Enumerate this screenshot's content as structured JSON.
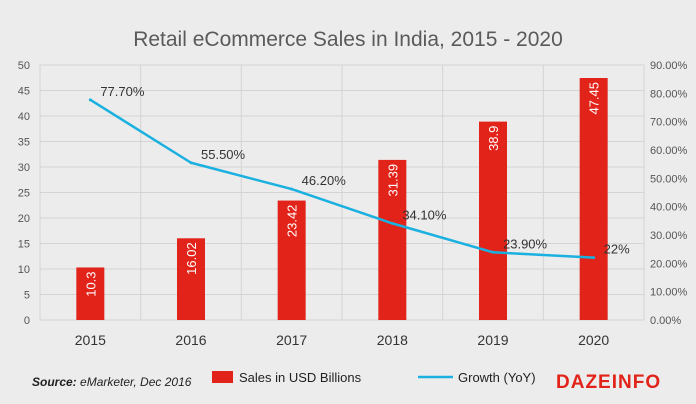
{
  "colors": {
    "bar": "#e2231a",
    "line": "#1ab0e0",
    "grid": "#d4d4d4",
    "background": "#ececec"
  },
  "source": {
    "label": "Source:",
    "text": " eMarketer, Dec 2016"
  },
  "logo": "DAZEINFO",
  "chart_data": {
    "type": "bar",
    "title": "Retail eCommerce Sales in India, 2015 - 2020",
    "categories": [
      "2015",
      "2016",
      "2017",
      "2018",
      "2019",
      "2020"
    ],
    "series": [
      {
        "name": "Sales in USD Billions",
        "type": "bar",
        "axis": "left",
        "values": [
          10.3,
          16.02,
          23.42,
          31.39,
          38.9,
          47.45
        ],
        "labels": [
          "10.3",
          "16.02",
          "23.42",
          "31.39",
          "38.9",
          "47.45"
        ]
      },
      {
        "name": "Growth (YoY)",
        "type": "line",
        "axis": "right",
        "values": [
          77.7,
          55.5,
          46.2,
          34.1,
          23.9,
          22
        ],
        "labels": [
          "77.70%",
          "55.50%",
          "46.20%",
          "34.10%",
          "23.90%",
          "22%"
        ]
      }
    ],
    "y_left": {
      "range": [
        0,
        50
      ],
      "ticks": [
        "0",
        "5",
        "10",
        "15",
        "20",
        "25",
        "30",
        "35",
        "40",
        "45",
        "50"
      ]
    },
    "y_right": {
      "range": [
        0,
        90
      ],
      "ticks": [
        "0.00%",
        "10.00%",
        "20.00%",
        "30.00%",
        "40.00%",
        "50.00%",
        "60.00%",
        "70.00%",
        "80.00%",
        "90.00%"
      ]
    },
    "grid": true,
    "legend": "bottom"
  }
}
